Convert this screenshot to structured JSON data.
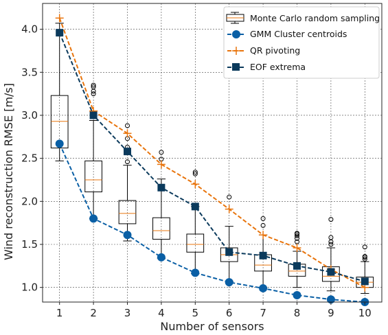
{
  "chart_data": {
    "type": "box+line",
    "xlabel": "Number of sensors",
    "ylabel": "Wind reconstruction RMSE [m/s]",
    "xlim": [
      0.5,
      10.5
    ],
    "ylim": [
      0.83,
      4.3
    ],
    "xticks": [
      1,
      2,
      3,
      4,
      5,
      6,
      7,
      8,
      9,
      10
    ],
    "yticks": [
      1.0,
      1.5,
      2.0,
      2.5,
      3.0,
      3.5,
      4.0
    ],
    "ytick_labels": [
      "1.0",
      "1.5",
      "2.0",
      "2.5",
      "3.0",
      "3.5",
      "4.0"
    ],
    "grid": true,
    "legend_position": "top-right",
    "boxplot": {
      "name": "Monte Carlo random sampling",
      "positions": [
        1,
        2,
        3,
        4,
        5,
        6,
        7,
        8,
        9,
        10
      ],
      "q1": [
        2.62,
        2.11,
        1.74,
        1.56,
        1.41,
        1.3,
        1.19,
        1.13,
        1.07,
        1.0
      ],
      "median": [
        2.93,
        2.25,
        1.86,
        1.66,
        1.5,
        1.38,
        1.26,
        1.19,
        1.13,
        1.06
      ],
      "q3": [
        3.23,
        2.47,
        2.01,
        1.81,
        1.62,
        1.46,
        1.38,
        1.27,
        1.24,
        1.12
      ],
      "whisker_low": [
        2.47,
        1.8,
        1.54,
        1.34,
        1.16,
        1.07,
        1.0,
        1.0,
        0.96,
        0.93
      ],
      "whisker_high": [
        4.07,
        2.94,
        2.42,
        2.26,
        1.94,
        1.71,
        1.61,
        1.42,
        1.46,
        1.3
      ],
      "outliers": [
        [],
        [
          3.25,
          3.28,
          3.33,
          3.35
        ],
        [
          2.46,
          2.58,
          2.63,
          2.73,
          2.88
        ],
        [
          2.49,
          2.57
        ],
        [
          2.32,
          2.34
        ],
        [
          2.05
        ],
        [
          1.72,
          1.8
        ],
        [
          1.53,
          1.57,
          1.6,
          1.62,
          1.63
        ],
        [
          1.5,
          1.53,
          1.58,
          1.79
        ],
        [
          1.33,
          1.35,
          1.36,
          1.47
        ]
      ]
    },
    "series": [
      {
        "name": "GMM Cluster centroids",
        "color": "#0a5fa5",
        "marker": "circle",
        "x": [
          1,
          2,
          3,
          4,
          5,
          6,
          7,
          8,
          9,
          10
        ],
        "values": [
          2.67,
          1.8,
          1.61,
          1.35,
          1.17,
          1.06,
          0.99,
          0.91,
          0.86,
          0.83
        ]
      },
      {
        "name": "QR pivoting",
        "color": "#e8740c",
        "marker": "plus",
        "x": [
          1,
          2,
          3,
          4,
          5,
          6,
          7,
          8,
          9,
          10
        ],
        "values": [
          4.13,
          3.05,
          2.79,
          2.43,
          2.2,
          1.91,
          1.61,
          1.46,
          1.21,
          1.0
        ]
      },
      {
        "name": "EOF extrema",
        "color": "#0b3a5c",
        "marker": "square",
        "x": [
          1,
          2,
          3,
          4,
          5,
          6,
          7,
          8,
          9,
          10
        ],
        "values": [
          3.96,
          3.0,
          2.58,
          2.16,
          1.94,
          1.41,
          1.37,
          1.25,
          1.18,
          1.07
        ]
      }
    ]
  }
}
